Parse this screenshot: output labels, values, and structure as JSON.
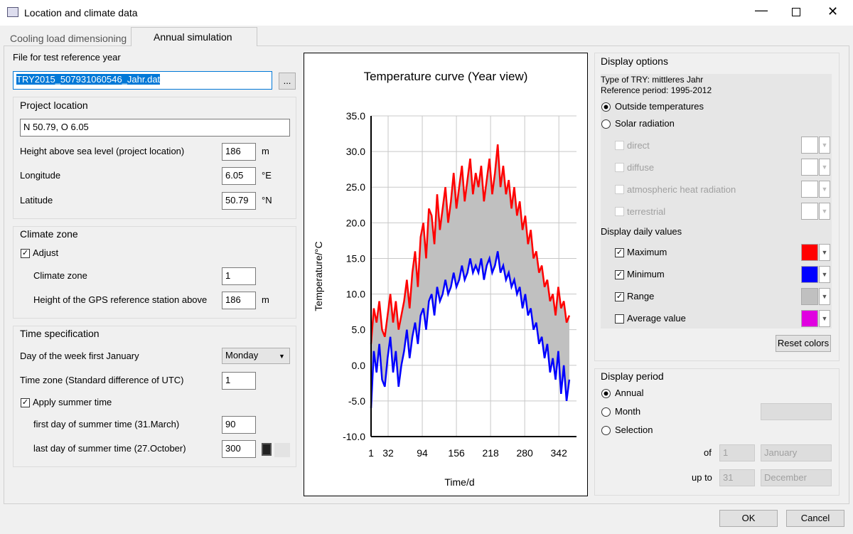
{
  "window": {
    "title": "Location and climate data"
  },
  "tabs": [
    "Cooling load dimensioning",
    "Annual simulation"
  ],
  "file": {
    "label": "File for test reference year",
    "value": "TRY2015_507931060546_Jahr.dat",
    "browse": "..."
  },
  "project_location": {
    "title": "Project location",
    "coords": "N 50.79, O 6.05",
    "fields": [
      {
        "label": "Height above sea level (project location)",
        "value": "186",
        "unit": "m"
      },
      {
        "label": "Longitude",
        "value": "6.05",
        "unit": "°E"
      },
      {
        "label": "Latitude",
        "value": "50.79",
        "unit": "°N"
      }
    ]
  },
  "climate_zone": {
    "title": "Climate zone",
    "adjust": "Adjust",
    "fields": [
      {
        "label": "Climate zone",
        "value": "1"
      },
      {
        "label": "Height of the GPS reference station above",
        "value": "186",
        "unit": "m"
      }
    ]
  },
  "time": {
    "title": "Time specification",
    "fields": [
      {
        "label": "Day of the week first January",
        "value": "Monday"
      },
      {
        "label": "Time zone (Standard difference of UTC)",
        "value": "1"
      }
    ],
    "summer": "Apply summer time",
    "summer_fields": [
      {
        "label": "first day of summer time (31.March)",
        "value": "90"
      },
      {
        "label": "last day of summer time (27.October)",
        "value": "300"
      }
    ]
  },
  "chart_data": {
    "type": "line",
    "title": "Temperature curve (Year view)",
    "x_label": "Time/d",
    "y_label": "Temperature/°C",
    "xlim": [
      1,
      374
    ],
    "xticks": [
      1,
      32,
      94,
      156,
      218,
      280,
      342
    ],
    "ylim": [
      -10,
      35
    ],
    "yticks": [
      {
        "value": 35,
        "label": "35.0"
      },
      {
        "value": 30,
        "label": "30.0"
      },
      {
        "value": 25,
        "label": "25.0"
      },
      {
        "value": 20,
        "label": "20.0"
      },
      {
        "value": 15,
        "label": "15.0"
      },
      {
        "value": 10,
        "label": "10.0"
      },
      {
        "value": 5,
        "label": "5.0"
      },
      {
        "value": 0,
        "label": "0.0"
      },
      {
        "value": -5,
        "label": "-5.0"
      },
      {
        "value": -10,
        "label": "-10.0"
      }
    ],
    "grid": true,
    "range_color": "#c0c0c0",
    "x": [
      1,
      6,
      11,
      16,
      21,
      26,
      31,
      36,
      41,
      46,
      51,
      56,
      61,
      66,
      71,
      76,
      81,
      86,
      91,
      96,
      101,
      106,
      111,
      116,
      121,
      126,
      131,
      136,
      141,
      146,
      151,
      156,
      161,
      166,
      171,
      176,
      181,
      186,
      191,
      196,
      201,
      206,
      211,
      216,
      221,
      226,
      231,
      236,
      241,
      246,
      251,
      256,
      261,
      266,
      271,
      276,
      281,
      286,
      291,
      296,
      301,
      306,
      311,
      316,
      321,
      326,
      331,
      336,
      341,
      346,
      351,
      356,
      361
    ],
    "series": [
      {
        "name": "Maximum",
        "color": "#ff0000",
        "values": [
          3,
          8,
          6,
          9,
          5,
          4,
          7,
          10,
          6,
          9,
          5,
          7,
          9,
          12,
          8,
          13,
          16,
          11,
          18,
          20,
          15,
          22,
          21,
          17,
          24,
          19,
          22,
          25,
          20,
          23,
          27,
          22,
          25,
          28,
          23,
          26,
          29,
          24,
          27,
          25,
          28,
          23,
          26,
          29,
          24,
          27,
          31,
          25,
          28,
          24,
          26,
          22,
          25,
          21,
          23,
          19,
          21,
          17,
          19,
          15,
          16,
          13,
          14,
          11,
          12,
          9,
          10,
          7,
          11,
          8,
          9,
          6,
          7
        ]
      },
      {
        "name": "Minimum",
        "color": "#0000ff",
        "values": [
          -6,
          2,
          -1,
          3,
          -2,
          -3,
          1,
          4,
          -1,
          2,
          -3,
          0,
          2,
          5,
          1,
          4,
          6,
          3,
          7,
          8,
          5,
          9,
          10,
          7,
          11,
          9,
          10,
          12,
          10,
          11,
          13,
          11,
          12,
          14,
          12,
          13,
          15,
          13,
          14,
          13,
          15,
          12,
          14,
          15,
          13,
          14,
          16,
          13,
          14,
          12,
          13,
          11,
          12,
          10,
          11,
          8,
          10,
          7,
          8,
          5,
          6,
          3,
          4,
          1,
          3,
          -1,
          1,
          -2,
          2,
          -4,
          0,
          -5,
          -2
        ]
      }
    ]
  },
  "display_options": {
    "title": "Display options",
    "try_type": "Type of TRY: mittleres Jahr",
    "period": "Reference period: 1995-2012",
    "radio": [
      "Outside temperatures",
      "Solar radiation"
    ],
    "solar": [
      "direct",
      "diffuse",
      "atmospheric heat radiation",
      "terrestrial"
    ],
    "daily_title": "Display daily values",
    "range": "Range",
    "average": "Average value",
    "average_color": "#e000e0",
    "reset": "Reset colors"
  },
  "display_period": {
    "title": "Display period",
    "radio": [
      "Annual",
      "Month",
      "Selection"
    ],
    "of": "of",
    "up_to": "up to",
    "from_day": "1",
    "from_month": "January",
    "to_day": "31",
    "to_month": "December"
  },
  "buttons": [
    "OK",
    "Cancel"
  ]
}
